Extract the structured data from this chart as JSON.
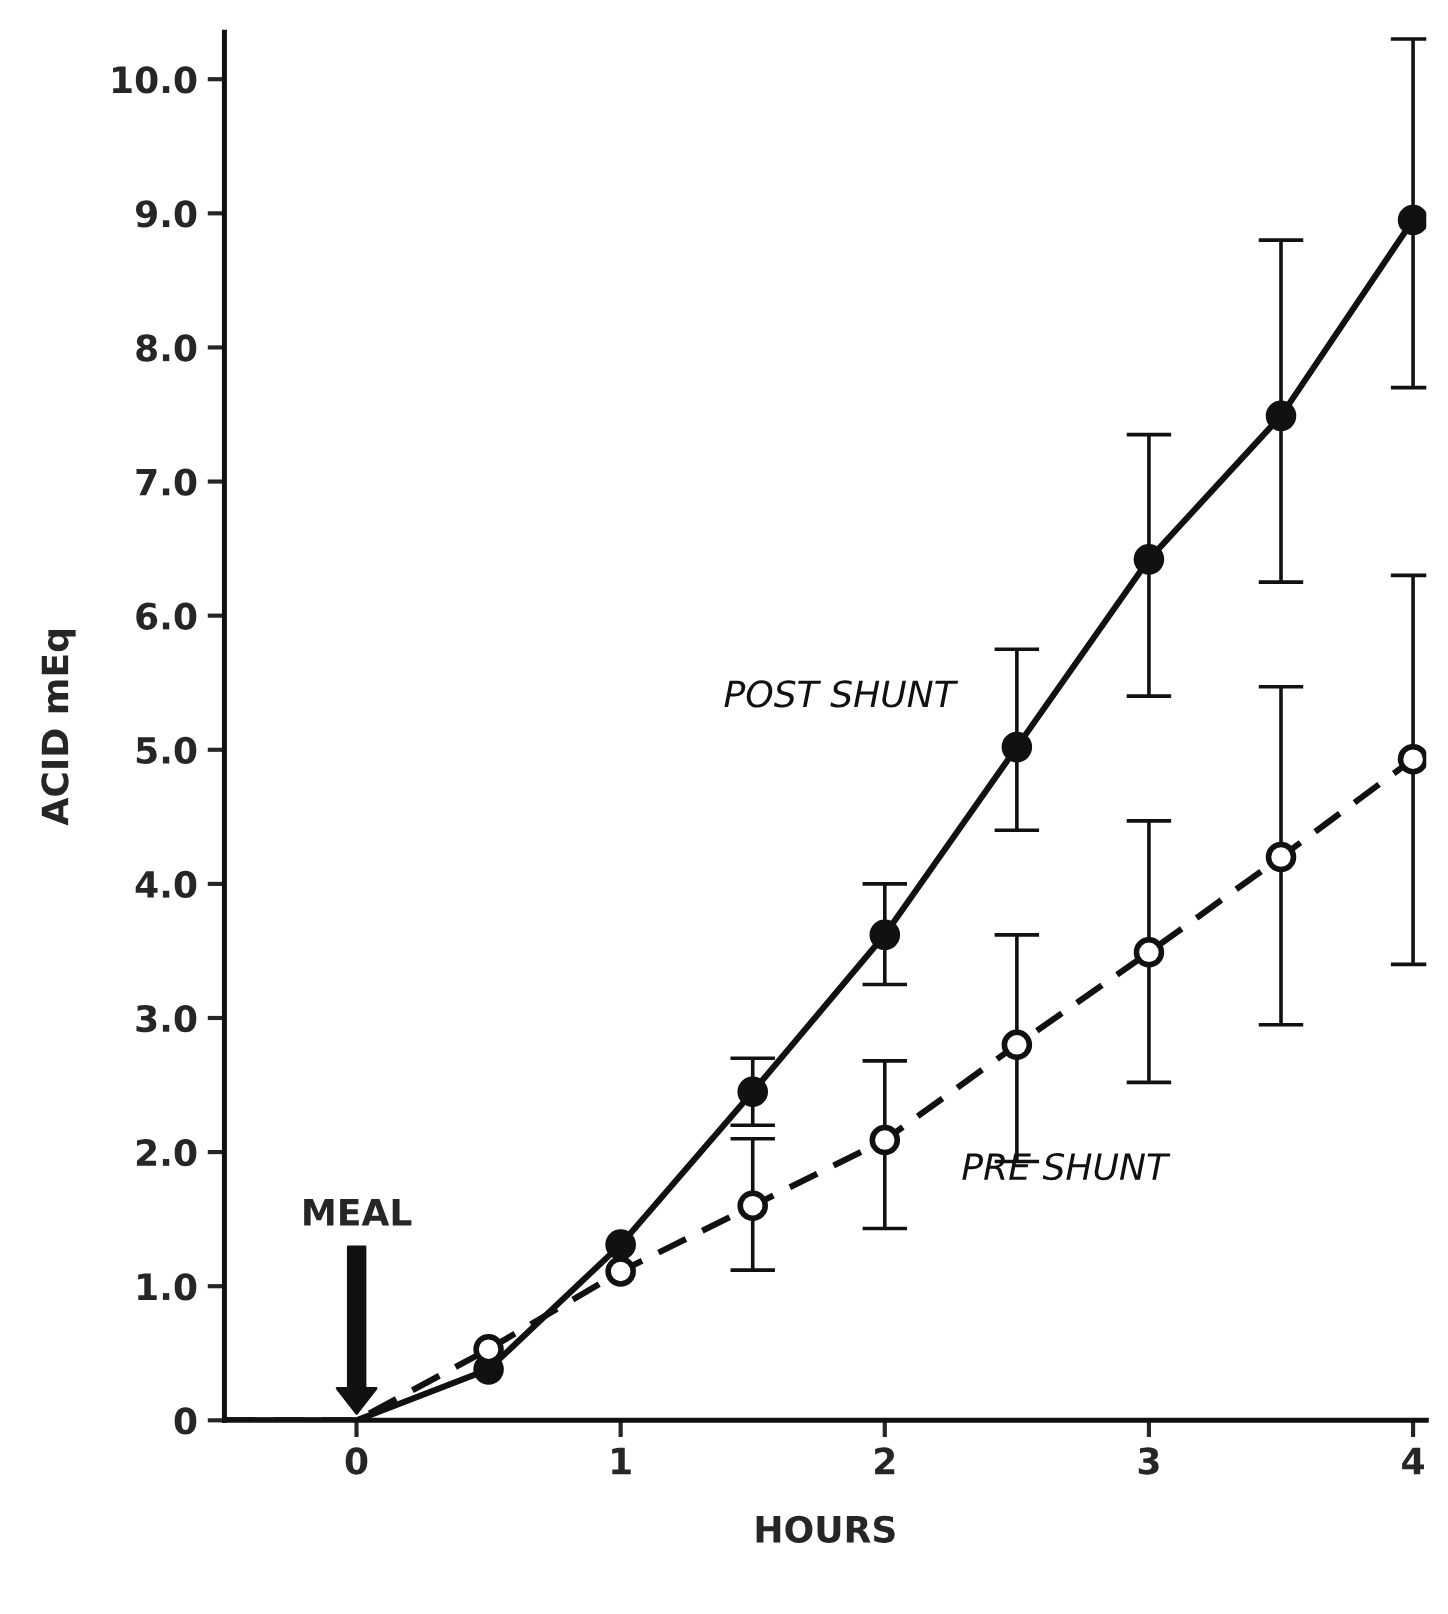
{
  "chart_data": {
    "type": "line",
    "xlabel": "HOURS",
    "ylabel": "ACID mEq",
    "xlim": [
      -0.5,
      4.05
    ],
    "ylim": [
      0,
      10.35
    ],
    "xticks": [
      0,
      1,
      2,
      3,
      4
    ],
    "yticks": [
      {
        "value": 0,
        "label": "0"
      },
      {
        "value": 1,
        "label": "1.0"
      },
      {
        "value": 2,
        "label": "2.0"
      },
      {
        "value": 3,
        "label": "3.0"
      },
      {
        "value": 4,
        "label": "4.0"
      },
      {
        "value": 5,
        "label": "5.0"
      },
      {
        "value": 6,
        "label": "6.0"
      },
      {
        "value": 7,
        "label": "7.0"
      },
      {
        "value": 8,
        "label": "8.0"
      },
      {
        "value": 9,
        "label": "9.0"
      },
      {
        "value": 10,
        "label": "10.0"
      }
    ],
    "grid": false,
    "legend": false,
    "annotations": [
      "MEAL"
    ],
    "series": [
      {
        "name": "POST SHUNT",
        "color": "#111111",
        "marker": "circle",
        "line_style": "solid",
        "x": [
          0.5,
          1,
          1.5,
          2,
          2.5,
          3,
          3.5,
          4
        ],
        "values": [
          0.38,
          1.31,
          2.45,
          3.62,
          5.02,
          6.42,
          7.49,
          8.95
        ],
        "errors": [
          null,
          null,
          [
            2.2,
            2.7
          ],
          [
            3.25,
            4.0
          ],
          [
            4.4,
            5.75
          ],
          [
            5.4,
            7.35
          ],
          [
            6.25,
            8.8
          ],
          [
            7.7,
            10.3
          ]
        ]
      },
      {
        "name": "PRE SHUNT",
        "color": "#111111",
        "marker": "circle",
        "line_style": "dashed",
        "x": [
          0.5,
          1,
          1.5,
          2,
          2.5,
          3,
          3.5,
          4
        ],
        "values": [
          0.53,
          1.11,
          1.6,
          2.09,
          2.8,
          3.49,
          4.2,
          4.93
        ],
        "errors": [
          null,
          null,
          [
            1.12,
            2.1
          ],
          [
            1.43,
            2.68
          ],
          [
            1.93,
            3.62
          ],
          [
            2.52,
            4.47
          ],
          [
            2.95,
            5.47
          ],
          [
            3.4,
            6.3
          ]
        ]
      },
      {
        "color": "#111111",
        "marker": "none",
        "line_style": "solid",
        "x": [
          -0.5,
          0,
          0.5
        ],
        "values": [
          0,
          0,
          0.38
        ]
      },
      {
        "color": "#111111",
        "marker": "none",
        "line_style": "dashed",
        "x": [
          -0.5,
          0,
          0.5
        ],
        "values": [
          0,
          0,
          0.53
        ]
      }
    ]
  }
}
